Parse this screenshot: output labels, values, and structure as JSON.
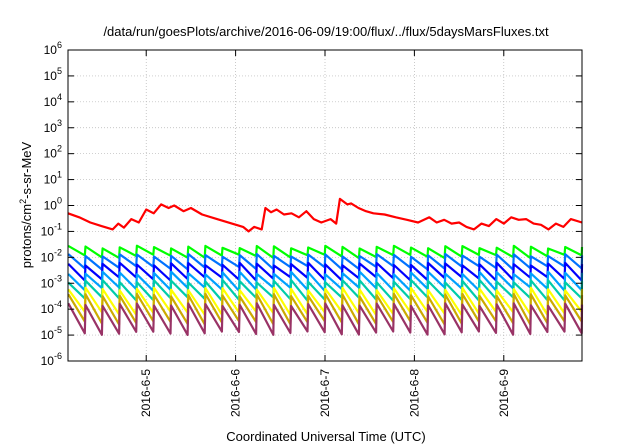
{
  "chart_data": {
    "type": "line",
    "title": "/data/run/goesPlots/archive/2016-06-09/19:00/flux/../flux/5daysMarsFluxes.txt",
    "xlabel": "Coordinated Universal Time (UTC)",
    "ylabel": {
      "base": "protons/cm",
      "sup": "2",
      "rest": "-s-sr-MeV"
    },
    "y_scale": "log",
    "ylim": [
      1e-06,
      1000000.0
    ],
    "y_ticks": [
      {
        "base": "10",
        "exp": "6",
        "value": 1000000.0
      },
      {
        "base": "10",
        "exp": "5",
        "value": 100000.0
      },
      {
        "base": "10",
        "exp": "4",
        "value": 10000.0
      },
      {
        "base": "10",
        "exp": "3",
        "value": 1000.0
      },
      {
        "base": "10",
        "exp": "2",
        "value": 100.0
      },
      {
        "base": "10",
        "exp": "1",
        "value": 10.0
      },
      {
        "base": "10",
        "exp": "0",
        "value": 1
      },
      {
        "base": "10",
        "exp": "-1",
        "value": 0.1
      },
      {
        "base": "10",
        "exp": "-2",
        "value": 0.01
      },
      {
        "base": "10",
        "exp": "-3",
        "value": 0.001
      },
      {
        "base": "10",
        "exp": "-4",
        "value": 0.0001
      },
      {
        "base": "10",
        "exp": "-5",
        "value": 1e-05
      },
      {
        "base": "10",
        "exp": "-6",
        "value": 1e-06
      }
    ],
    "xlim": [
      "2016-06-04 03:00",
      "2016-06-09 21:00"
    ],
    "x_ticks": [
      "2016-6-5",
      "2016-6-6",
      "2016-6-7",
      "2016-6-8",
      "2016-6-9"
    ],
    "grid": true,
    "series": [
      {
        "color": "#ff0000",
        "points": [
          [
            "2016-06-04 03:00",
            0.5
          ],
          [
            "2016-06-04 06:00",
            0.35
          ],
          [
            "2016-06-04 09:00",
            0.22
          ],
          [
            "2016-06-04 12:00",
            0.16
          ],
          [
            "2016-06-04 15:00",
            0.12
          ],
          [
            "2016-06-04 16:30",
            0.2
          ],
          [
            "2016-06-04 18:00",
            0.14
          ],
          [
            "2016-06-04 20:00",
            0.3
          ],
          [
            "2016-06-04 22:00",
            0.22
          ],
          [
            "2016-06-05 00:00",
            0.7
          ],
          [
            "2016-06-05 02:00",
            0.5
          ],
          [
            "2016-06-05 04:00",
            1.1
          ],
          [
            "2016-06-05 06:00",
            0.8
          ],
          [
            "2016-06-05 07:30",
            1.0
          ],
          [
            "2016-06-05 10:00",
            0.6
          ],
          [
            "2016-06-05 12:00",
            0.8
          ],
          [
            "2016-06-05 15:00",
            0.45
          ],
          [
            "2016-06-05 19:00",
            0.3
          ],
          [
            "2016-06-05 23:00",
            0.2
          ],
          [
            "2016-06-06 02:00",
            0.15
          ],
          [
            "2016-06-06 03:30",
            0.1
          ],
          [
            "2016-06-06 05:00",
            0.15
          ],
          [
            "2016-06-06 07:00",
            0.12
          ],
          [
            "2016-06-06 08:00",
            0.8
          ],
          [
            "2016-06-06 09:30",
            0.55
          ],
          [
            "2016-06-06 11:00",
            0.7
          ],
          [
            "2016-06-06 13:00",
            0.45
          ],
          [
            "2016-06-06 15:00",
            0.5
          ],
          [
            "2016-06-06 17:00",
            0.35
          ],
          [
            "2016-06-06 19:00",
            0.6
          ],
          [
            "2016-06-06 21:00",
            0.3
          ],
          [
            "2016-06-06 23:00",
            0.22
          ],
          [
            "2016-06-07 01:30",
            0.3
          ],
          [
            "2016-06-07 03:00",
            0.2
          ],
          [
            "2016-06-07 04:00",
            1.8
          ],
          [
            "2016-06-07 06:00",
            1.1
          ],
          [
            "2016-06-07 07:00",
            1.2
          ],
          [
            "2016-06-07 09:00",
            0.8
          ],
          [
            "2016-06-07 11:00",
            0.6
          ],
          [
            "2016-06-07 13:00",
            0.5
          ],
          [
            "2016-06-07 16:00",
            0.45
          ],
          [
            "2016-06-07 19:00",
            0.35
          ],
          [
            "2016-06-07 22:00",
            0.28
          ],
          [
            "2016-06-08 01:00",
            0.22
          ],
          [
            "2016-06-08 04:00",
            0.35
          ],
          [
            "2016-06-08 06:00",
            0.22
          ],
          [
            "2016-06-08 08:00",
            0.28
          ],
          [
            "2016-06-08 10:00",
            0.2
          ],
          [
            "2016-06-08 12:00",
            0.22
          ],
          [
            "2016-06-08 14:00",
            0.15
          ],
          [
            "2016-06-08 16:00",
            0.12
          ],
          [
            "2016-06-08 18:00",
            0.2
          ],
          [
            "2016-06-08 20:00",
            0.16
          ],
          [
            "2016-06-08 22:00",
            0.3
          ],
          [
            "2016-06-09 00:00",
            0.2
          ],
          [
            "2016-06-09 02:00",
            0.35
          ],
          [
            "2016-06-09 04:00",
            0.28
          ],
          [
            "2016-06-09 06:00",
            0.3
          ],
          [
            "2016-06-09 08:00",
            0.2
          ],
          [
            "2016-06-09 10:00",
            0.18
          ],
          [
            "2016-06-09 12:00",
            0.12
          ],
          [
            "2016-06-09 14:00",
            0.2
          ],
          [
            "2016-06-09 16:00",
            0.15
          ],
          [
            "2016-06-09 18:00",
            0.3
          ],
          [
            "2016-06-09 21:00",
            0.22
          ]
        ]
      },
      {
        "color": "#00ff00",
        "sawtooth": {
          "peak": 0.025,
          "trough": 0.011,
          "cycles": 30
        }
      },
      {
        "color": "#0072ff",
        "sawtooth": {
          "peak": 0.012,
          "trough": 0.004,
          "cycles": 30
        }
      },
      {
        "color": "#0000ff",
        "sawtooth": {
          "peak": 0.0055,
          "trough": 0.0015,
          "cycles": 30
        }
      },
      {
        "color": "#00a0ff",
        "sawtooth": {
          "peak": 0.0025,
          "trough": 0.0006,
          "cycles": 30
        }
      },
      {
        "color": "#00ccaa",
        "sawtooth": {
          "peak": 0.0012,
          "trough": 0.00025,
          "cycles": 30
        }
      },
      {
        "color": "#ffff00",
        "sawtooth": {
          "peak": 0.0006,
          "trough": 7e-05,
          "cycles": 30
        }
      },
      {
        "color": "#ccaa00",
        "sawtooth": {
          "peak": 0.00035,
          "trough": 3e-05,
          "cycles": 30
        }
      },
      {
        "color": "#993366",
        "sawtooth": {
          "peak": 0.00015,
          "trough": 1.2e-05,
          "cycles": 30
        }
      }
    ]
  }
}
